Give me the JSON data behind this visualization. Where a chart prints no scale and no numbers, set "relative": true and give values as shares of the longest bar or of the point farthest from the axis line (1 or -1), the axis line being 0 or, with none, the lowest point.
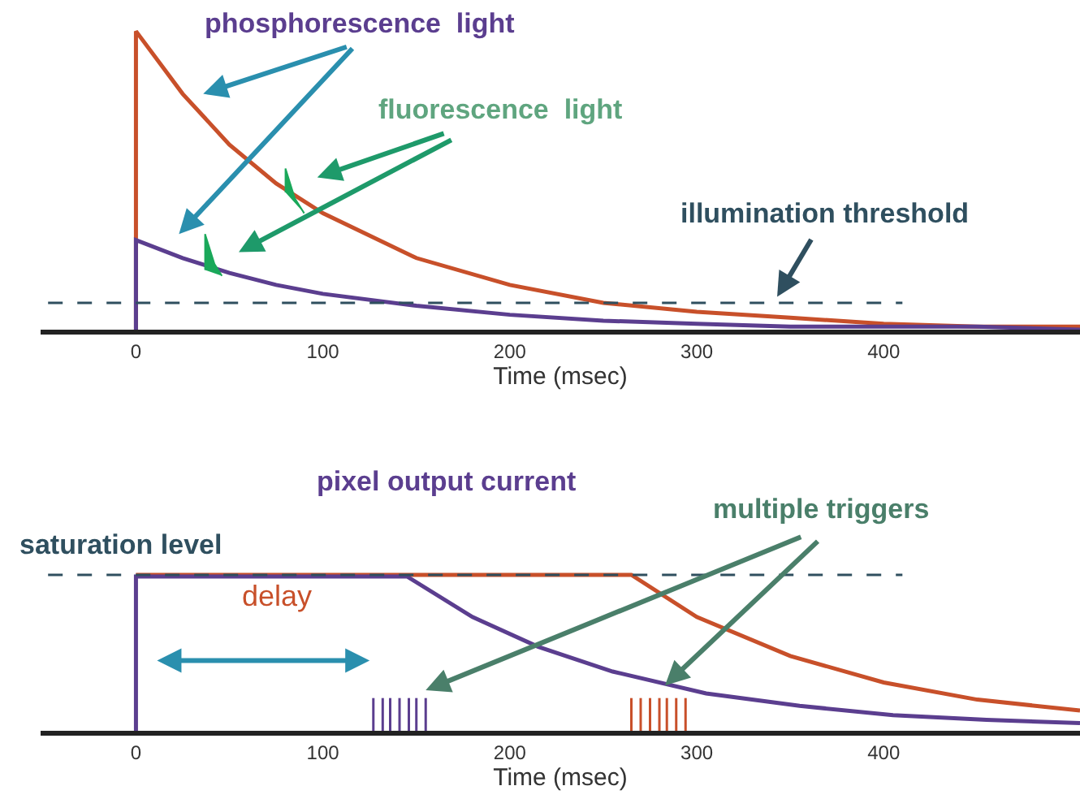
{
  "chart_data": [
    {
      "type": "line",
      "relative": true,
      "xlabel": "Time (msec)",
      "xlim": [
        -51,
        505
      ],
      "xticks": [
        0,
        100,
        200,
        300,
        400
      ],
      "grid": false,
      "annotations": [
        "phosphorescence  light",
        "fluorescence  light"
      ],
      "ref_lines": [
        {
          "axis": "y",
          "value": 0.09,
          "label": "illumination threshold",
          "color": "#2f4f5f",
          "line_style": "dashed"
        }
      ],
      "series": [
        {
          "color": "#c8502a",
          "x": [
            0,
            0,
            25,
            50,
            75,
            100,
            150,
            200,
            250,
            300,
            350,
            400,
            450,
            505
          ],
          "values": [
            0,
            1,
            0.79,
            0.62,
            0.49,
            0.39,
            0.24,
            0.15,
            0.09,
            0.06,
            0.04,
            0.02,
            0.01,
            0.01
          ]
        },
        {
          "color": "#5b3e8f",
          "x": [
            0,
            0,
            25,
            50,
            75,
            100,
            150,
            200,
            250,
            300,
            350,
            400,
            450,
            505
          ],
          "values": [
            0,
            0.3,
            0.24,
            0.19,
            0.15,
            0.12,
            0.08,
            0.05,
            0.03,
            0.02,
            0.01,
            0.01,
            0.01,
            0
          ]
        },
        {
          "type": "area",
          "color": "#1aa85a",
          "x": [
            37,
            37,
            39,
            42,
            46
          ],
          "values": [
            0.2,
            0.32,
            0.28,
            0.22,
            0.18
          ]
        },
        {
          "type": "area",
          "color": "#1aa85a",
          "x": [
            80,
            80,
            82,
            85,
            90
          ],
          "values": [
            0.46,
            0.54,
            0.5,
            0.44,
            0.39
          ]
        }
      ]
    },
    {
      "type": "line",
      "relative": true,
      "xlabel": "Time (msec)",
      "xlim": [
        -51,
        505
      ],
      "xticks": [
        0,
        100,
        200,
        300,
        400
      ],
      "grid": false,
      "annotations": [
        "pixel output current",
        "multiple triggers",
        "delay"
      ],
      "ref_lines": [
        {
          "axis": "y",
          "value": 1,
          "label": "saturation level",
          "color": "#2f4f5f",
          "line_style": "dashed"
        }
      ],
      "series": [
        {
          "color": "#c8502a",
          "x": [
            0,
            265,
            300,
            350,
            400,
            450,
            505
          ],
          "values": [
            1,
            1,
            0.73,
            0.48,
            0.31,
            0.2,
            0.13
          ]
        },
        {
          "color": "#5b3e8f",
          "x": [
            0,
            0,
            145,
            180,
            215,
            255,
            305,
            355,
            405,
            455,
            505
          ],
          "values": [
            0,
            0.99,
            0.99,
            0.73,
            0.54,
            0.38,
            0.24,
            0.16,
            0.1,
            0.07,
            0.05
          ]
        },
        {
          "type": "bar",
          "color": "#5b3e8f",
          "x": [
            127,
            132,
            136,
            141,
            146,
            150,
            155
          ],
          "values": [
            0.21,
            0.21,
            0.21,
            0.21,
            0.21,
            0.21,
            0.21
          ]
        },
        {
          "type": "bar",
          "color": "#c8502a",
          "x": [
            265,
            270,
            275,
            280,
            284,
            289,
            294
          ],
          "values": [
            0.21,
            0.21,
            0.21,
            0.21,
            0.21,
            0.21,
            0.21
          ]
        }
      ]
    }
  ]
}
